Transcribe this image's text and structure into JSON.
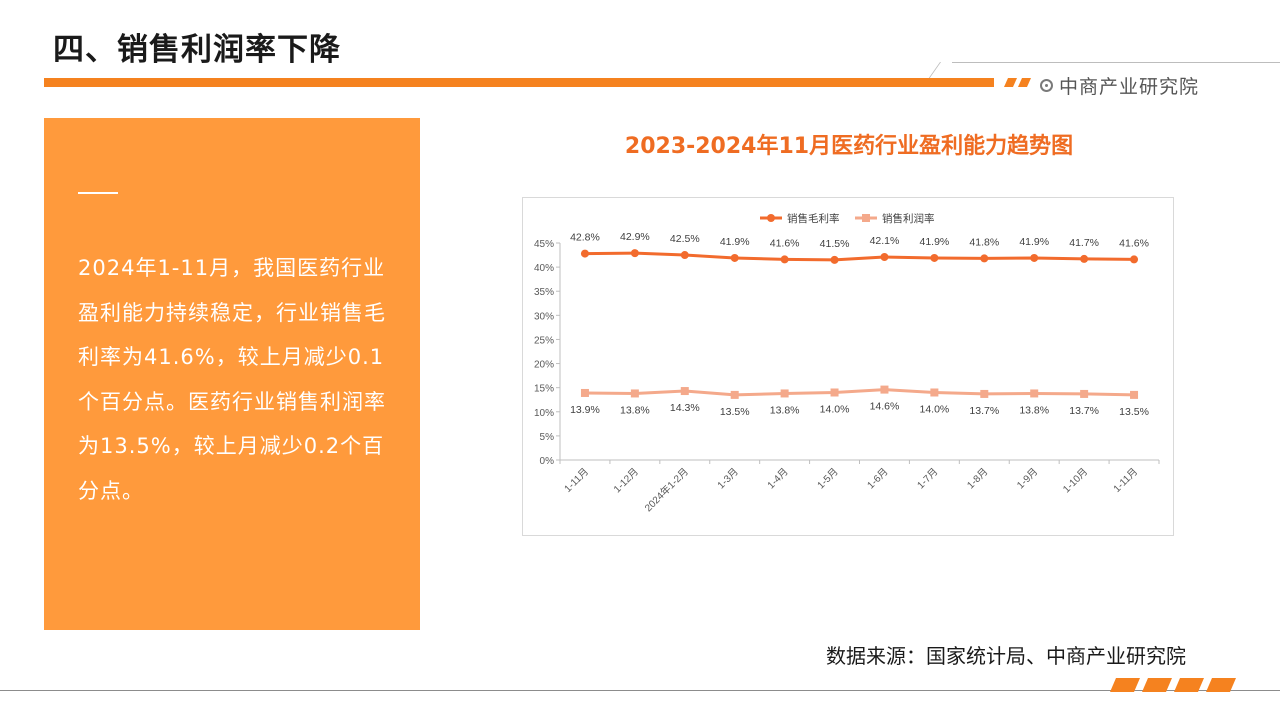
{
  "header": {
    "page_title": "四、销售利润率下降",
    "brand": "中商产业研究院",
    "accent_color": "#f5821f"
  },
  "summary": {
    "text": "2024年1-11月，我国医药行业盈利能力持续稳定，行业销售毛利率为41.6%，较上月减少0.1个百分点。医药行业销售利润率为13.5%，较上月减少0.2个百分点。",
    "panel_color": "#ff9a3c"
  },
  "footer": {
    "source": "数据来源：国家统计局、中商产业研究院"
  },
  "chart_data": {
    "type": "line",
    "title": "2023-2024年11月医药行业盈利能力趋势图",
    "xlabel": "",
    "ylabel": "",
    "categories": [
      "1-11月",
      "1-12月",
      "2024年1-2月",
      "1-3月",
      "1-4月",
      "1-5月",
      "1-6月",
      "1-7月",
      "1-8月",
      "1-9月",
      "1-10月",
      "1-11月"
    ],
    "ylim": [
      0,
      45
    ],
    "yticks": [
      0,
      5,
      10,
      15,
      20,
      25,
      30,
      35,
      40,
      45
    ],
    "ytick_suffix": "%",
    "grid": false,
    "legend_position": "top-center",
    "series": [
      {
        "name": "销售毛利率",
        "values": [
          42.8,
          42.9,
          42.5,
          41.9,
          41.6,
          41.5,
          42.1,
          41.9,
          41.8,
          41.9,
          41.7,
          41.6
        ],
        "labels": [
          "42.8%",
          "42.9%",
          "42.5%",
          "41.9%",
          "41.6%",
          "41.5%",
          "42.1%",
          "41.9%",
          "41.8%",
          "41.9%",
          "41.7%",
          "41.6%"
        ],
        "color": "#f26b2d",
        "marker": "circle",
        "label_position": "above"
      },
      {
        "name": "销售利润率",
        "values": [
          13.9,
          13.8,
          14.3,
          13.5,
          13.8,
          14.0,
          14.6,
          14.0,
          13.7,
          13.8,
          13.7,
          13.5
        ],
        "labels": [
          "13.9%",
          "13.8%",
          "14.3%",
          "13.5%",
          "13.8%",
          "14.0%",
          "14.6%",
          "14.0%",
          "13.7%",
          "13.8%",
          "13.7%",
          "13.5%"
        ],
        "color": "#f4a98b",
        "marker": "square",
        "label_position": "below"
      }
    ]
  }
}
